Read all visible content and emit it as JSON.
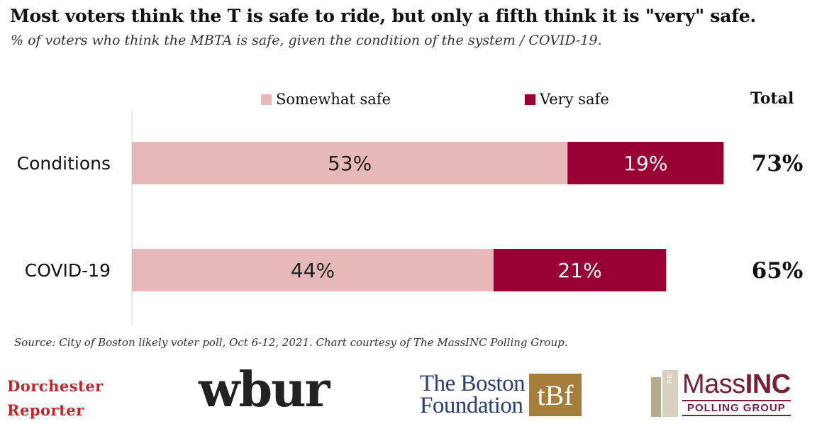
{
  "title": "Most voters think the T is safe to ride, but only a fifth think it is \"very\" safe.",
  "subtitle": "% of voters who think the MBTA is safe, given the condition of the system / COVID-19.",
  "total_header": "Total",
  "source": "Source: City of Boston likely voter poll, Oct 6-12, 2021. Chart courtesy of The MassINC Polling Group.",
  "colors": {
    "somewhat": "#e6b8b7",
    "very": "#990033"
  },
  "chart_data": {
    "type": "bar",
    "orientation": "horizontal",
    "stacked": true,
    "categories": [
      "Conditions",
      "COVID-19"
    ],
    "series": [
      {
        "name": "Somewhat safe",
        "values": [
          53,
          44
        ],
        "labels": [
          "53%",
          "44%"
        ]
      },
      {
        "name": "Very safe",
        "values": [
          19,
          21
        ],
        "labels": [
          "19%",
          "21%"
        ]
      }
    ],
    "totals": [
      "73%",
      "65%"
    ],
    "xlim": [
      0,
      73
    ],
    "legend": "top",
    "grid": false
  },
  "logos": {
    "dorchester": [
      "Dorchester",
      "Reporter"
    ],
    "wbur": "wbur",
    "boston_foundation": [
      "The Boston",
      "Foundation"
    ],
    "boston_foundation_mark": "tBf",
    "massinc": {
      "the": "THE",
      "mass": "Mass",
      "inc": "INC",
      "sub": "POLLING GROUP"
    }
  }
}
